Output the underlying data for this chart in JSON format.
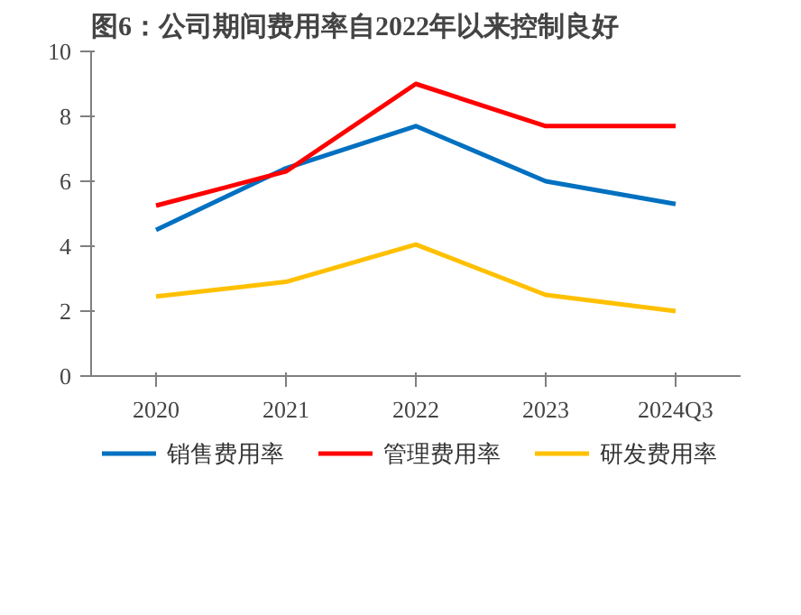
{
  "chart_data": {
    "type": "line",
    "title": "图6：公司期间费用率自2022年以来控制良好",
    "categories": [
      "2020",
      "2021",
      "2022",
      "2023",
      "2024Q3"
    ],
    "series": [
      {
        "name": "销售费用率",
        "color": "#0070c0",
        "values": [
          4.5,
          6.4,
          7.7,
          6.0,
          5.3
        ]
      },
      {
        "name": "管理费用率",
        "color": "#ff0000",
        "values": [
          5.25,
          6.3,
          9.0,
          7.7,
          7.7
        ]
      },
      {
        "name": "研发费用率",
        "color": "#ffc000",
        "values": [
          2.45,
          2.9,
          4.05,
          2.5,
          2.0
        ]
      }
    ],
    "ylim": [
      0,
      10
    ],
    "yticks": [
      0,
      2,
      4,
      6,
      8,
      10
    ],
    "grid": false,
    "legend": "bottom",
    "line_style": "solid",
    "marker": "none"
  }
}
